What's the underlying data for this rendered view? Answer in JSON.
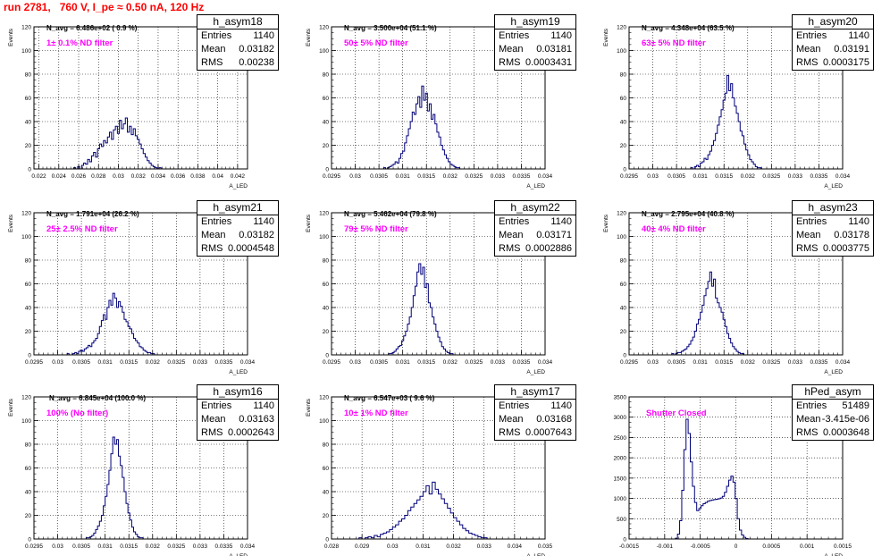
{
  "title": "run 2781,   760 V, I_pe ≈ 0.50 nA, 120 Hz",
  "chart_data": [
    {
      "type": "histogram",
      "name": "h_asym18",
      "stats": {
        "entries": "1140",
        "mean": "0.03182",
        "rms": "0.00238"
      },
      "n_avg": "N_avg = 6.486e+02 ( 0.9 %)",
      "note": "1± 0.1% ND filter",
      "ylabel": "Events",
      "xlabel": "A_LED",
      "xlim": [
        0.0215,
        0.043
      ],
      "ylim": [
        0,
        120
      ],
      "xticks": [
        0.022,
        0.024,
        0.026,
        0.028,
        0.03,
        0.032,
        0.034,
        0.036,
        0.038,
        0.04,
        0.042
      ],
      "xtick_labels": [
        "0.022",
        "0.024",
        "0.026",
        "0.028",
        "0.03",
        "0.032",
        "0.034",
        "0.036",
        "0.038",
        "0.04",
        "0.042"
      ],
      "yticks": [
        0,
        20,
        40,
        60,
        80,
        100,
        120
      ],
      "bins": {
        "start": 0.0255,
        "width": 0.0002,
        "counts": [
          1,
          0,
          2,
          0,
          3,
          5,
          4,
          8,
          6,
          11,
          14,
          10,
          17,
          21,
          19,
          24,
          22,
          27,
          31,
          25,
          33,
          36,
          30,
          41,
          34,
          38,
          43,
          31,
          36,
          29,
          34,
          28,
          25,
          21,
          17,
          13,
          10,
          7,
          5,
          3,
          2,
          1,
          0,
          1
        ]
      }
    },
    {
      "type": "histogram",
      "name": "h_asym19",
      "stats": {
        "entries": "1140",
        "mean": "0.03181",
        "rms": "0.0003431"
      },
      "n_avg": "N_avg = 3.500e+04 (51.1 %)",
      "note": "50± 5% ND filter",
      "ylabel": "Events",
      "xlabel": "A_LED",
      "xlim": [
        0.0295,
        0.034
      ],
      "ylim": [
        0,
        120
      ],
      "xticks": [
        0.0295,
        0.03,
        0.0305,
        0.031,
        0.0315,
        0.032,
        0.0325,
        0.033,
        0.0335,
        0.034
      ],
      "xtick_labels": [
        "0.0295",
        "0.03",
        "0.0305",
        "0.031",
        "0.0315",
        "0.032",
        "0.0325",
        "0.033",
        "0.0335",
        "0.034"
      ],
      "yticks": [
        0,
        20,
        40,
        60,
        80,
        100,
        120
      ],
      "bins": {
        "start": 0.0306,
        "width": 4e-05,
        "counts": [
          1,
          0,
          1,
          2,
          3,
          4,
          6,
          5,
          9,
          13,
          15,
          22,
          28,
          34,
          40,
          48,
          46,
          55,
          61,
          52,
          70,
          58,
          64,
          49,
          55,
          42,
          46,
          38,
          31,
          27,
          20,
          16,
          12,
          9,
          6,
          4,
          3,
          2,
          1,
          1
        ]
      }
    },
    {
      "type": "histogram",
      "name": "h_asym20",
      "stats": {
        "entries": "1140",
        "mean": "0.03191",
        "rms": "0.0003175"
      },
      "n_avg": "N_avg = 4.348e+04 (63.5 %)",
      "note": "63± 5% ND filter",
      "ylabel": "Events",
      "xlabel": "A_LED",
      "xlim": [
        0.0295,
        0.034
      ],
      "ylim": [
        0,
        120
      ],
      "xticks": [
        0.0295,
        0.03,
        0.0305,
        0.031,
        0.0315,
        0.032,
        0.0325,
        0.033,
        0.0335,
        0.034
      ],
      "xtick_labels": [
        "0.0295",
        "0.03",
        "0.0305",
        "0.031",
        "0.0315",
        "0.032",
        "0.0325",
        "0.033",
        "0.0335",
        "0.034"
      ],
      "yticks": [
        0,
        20,
        40,
        60,
        80,
        100,
        120
      ],
      "bins": {
        "start": 0.0308,
        "width": 4e-05,
        "counts": [
          1,
          0,
          2,
          3,
          2,
          5,
          6,
          9,
          8,
          12,
          15,
          20,
          24,
          30,
          37,
          44,
          50,
          58,
          64,
          79,
          66,
          72,
          60,
          53,
          47,
          40,
          32,
          28,
          21,
          16,
          12,
          8,
          6,
          4,
          2,
          1,
          1
        ]
      }
    },
    {
      "type": "histogram",
      "name": "h_asym21",
      "stats": {
        "entries": "1140",
        "mean": "0.03182",
        "rms": "0.0004548"
      },
      "n_avg": "N_avg = 1.791e+04 (26.2 %)",
      "note": "25± 2.5% ND filter",
      "ylabel": "Events",
      "xlabel": "A_LED",
      "xlim": [
        0.0295,
        0.034
      ],
      "ylim": [
        0,
        120
      ],
      "xticks": [
        0.0295,
        0.03,
        0.0305,
        0.031,
        0.0315,
        0.032,
        0.0325,
        0.033,
        0.0335,
        0.034
      ],
      "xtick_labels": [
        "0.0295",
        "0.03",
        "0.0305",
        "0.031",
        "0.0315",
        "0.032",
        "0.0325",
        "0.033",
        "0.0335",
        "0.034"
      ],
      "yticks": [
        0,
        20,
        40,
        60,
        80,
        100,
        120
      ],
      "bins": {
        "start": 0.0302,
        "width": 4e-05,
        "counts": [
          1,
          0,
          0,
          1,
          2,
          1,
          3,
          4,
          3,
          5,
          6,
          8,
          7,
          10,
          12,
          14,
          18,
          24,
          29,
          34,
          30,
          40,
          46,
          42,
          52,
          48,
          40,
          45,
          41,
          36,
          30,
          28,
          24,
          22,
          18,
          14,
          12,
          10,
          7,
          6,
          4,
          3,
          2,
          2,
          1,
          1
        ]
      }
    },
    {
      "type": "histogram",
      "name": "h_asym22",
      "stats": {
        "entries": "1140",
        "mean": "0.03171",
        "rms": "0.0002886"
      },
      "n_avg": "N_avg = 5.462e+04 (79.8 %)",
      "note": "79± 5% ND filter",
      "ylabel": "Events",
      "xlabel": "A_LED",
      "xlim": [
        0.0295,
        0.034
      ],
      "ylim": [
        0,
        120
      ],
      "xticks": [
        0.0295,
        0.03,
        0.0305,
        0.031,
        0.0315,
        0.032,
        0.0325,
        0.033,
        0.0335,
        0.034
      ],
      "xtick_labels": [
        "0.0295",
        "0.03",
        "0.0305",
        "0.031",
        "0.0315",
        "0.032",
        "0.0325",
        "0.033",
        "0.0335",
        "0.034"
      ],
      "yticks": [
        0,
        20,
        40,
        60,
        80,
        100,
        120
      ],
      "bins": {
        "start": 0.0307,
        "width": 4e-05,
        "counts": [
          1,
          1,
          2,
          3,
          5,
          7,
          8,
          12,
          16,
          20,
          26,
          32,
          40,
          50,
          58,
          70,
          77,
          68,
          74,
          57,
          60,
          44,
          40,
          32,
          26,
          20,
          15,
          11,
          7,
          5,
          3,
          2,
          1,
          1
        ]
      }
    },
    {
      "type": "histogram",
      "name": "h_asym23",
      "stats": {
        "entries": "1140",
        "mean": "0.03178",
        "rms": "0.0003775"
      },
      "n_avg": "N_avg = 2.795e+04 (40.8 %)",
      "note": "40± 4% ND filter",
      "ylabel": "Events",
      "xlabel": "A_LED",
      "xlim": [
        0.0295,
        0.034
      ],
      "ylim": [
        0,
        120
      ],
      "xticks": [
        0.0295,
        0.03,
        0.0305,
        0.031,
        0.0315,
        0.032,
        0.0325,
        0.033,
        0.0335,
        0.034
      ],
      "xtick_labels": [
        "0.0295",
        "0.03",
        "0.0305",
        "0.031",
        "0.0315",
        "0.032",
        "0.0325",
        "0.033",
        "0.0335",
        "0.034"
      ],
      "yticks": [
        0,
        20,
        40,
        60,
        80,
        100,
        120
      ],
      "bins": {
        "start": 0.0304,
        "width": 4e-05,
        "counts": [
          1,
          0,
          1,
          2,
          2,
          3,
          4,
          5,
          7,
          9,
          12,
          15,
          20,
          26,
          30,
          36,
          42,
          50,
          56,
          62,
          70,
          58,
          64,
          48,
          44,
          40,
          36,
          30,
          24,
          18,
          14,
          10,
          7,
          5,
          3,
          2,
          1,
          1
        ]
      }
    },
    {
      "type": "histogram",
      "name": "h_asym16",
      "stats": {
        "entries": "1140",
        "mean": "0.03163",
        "rms": "0.0002643"
      },
      "n_avg": "N_avg = 6.845e+04 (100.0 %)",
      "note": "100% (No filter)",
      "ylabel": "Events",
      "xlabel": "A_LED",
      "xlim": [
        0.0295,
        0.034
      ],
      "ylim": [
        0,
        120
      ],
      "xticks": [
        0.0295,
        0.03,
        0.0305,
        0.031,
        0.0315,
        0.032,
        0.0325,
        0.033,
        0.0335,
        0.034
      ],
      "xtick_labels": [
        "0.0295",
        "0.03",
        "0.0305",
        "0.031",
        "0.0315",
        "0.032",
        "0.0325",
        "0.033",
        "0.0335",
        "0.034"
      ],
      "yticks": [
        0,
        20,
        40,
        60,
        80,
        100,
        120
      ],
      "bins": {
        "start": 0.0306,
        "width": 4e-05,
        "counts": [
          1,
          1,
          2,
          3,
          5,
          8,
          11,
          15,
          20,
          28,
          36,
          46,
          58,
          72,
          86,
          80,
          84,
          70,
          62,
          52,
          40,
          30,
          22,
          16,
          10,
          6,
          4,
          2,
          1,
          1
        ]
      }
    },
    {
      "type": "histogram",
      "name": "h_asym17",
      "stats": {
        "entries": "1140",
        "mean": "0.03168",
        "rms": "0.0007643"
      },
      "n_avg": "N_avg = 6.547e+03 ( 9.6 %)",
      "note": "10± 1% ND filter",
      "ylabel": "Events",
      "xlabel": "A_LED",
      "xlim": [
        0.028,
        0.035
      ],
      "ylim": [
        0,
        120
      ],
      "xticks": [
        0.028,
        0.029,
        0.03,
        0.031,
        0.032,
        0.033,
        0.034,
        0.035
      ],
      "xtick_labels": [
        "0.028",
        "0.029",
        "0.03",
        "0.031",
        "0.032",
        "0.033",
        "0.034",
        "0.035"
      ],
      "yticks": [
        0,
        20,
        40,
        60,
        80,
        100,
        120
      ],
      "bins": {
        "start": 0.0289,
        "width": 0.0001,
        "counts": [
          1,
          0,
          1,
          2,
          1,
          3,
          2,
          4,
          5,
          6,
          8,
          10,
          12,
          15,
          17,
          20,
          24,
          27,
          30,
          33,
          36,
          40,
          45,
          38,
          48,
          42,
          38,
          34,
          30,
          26,
          22,
          18,
          15,
          12,
          9,
          7,
          5,
          4,
          3,
          2,
          1,
          1
        ]
      }
    },
    {
      "type": "histogram",
      "name": "hPed_asym",
      "stats": {
        "entries": "51489",
        "mean": "-3.415e-06",
        "rms": "0.0003648"
      },
      "note": "Shutter Closed",
      "xlabel": "A_LED",
      "xlim": [
        -0.0015,
        0.0015
      ],
      "ylim": [
        0,
        3500
      ],
      "xticks": [
        -0.0015,
        -0.001,
        -0.0005,
        0,
        0.0005,
        0.001,
        0.0015
      ],
      "xtick_labels": [
        "-0.0015",
        "-0.001",
        "-0.0005",
        "0",
        "0.0005",
        "0.001",
        "0.0015"
      ],
      "yticks": [
        0,
        500,
        1000,
        1500,
        2000,
        2500,
        3000,
        3500
      ],
      "bins": {
        "start": -0.00085,
        "width": 3e-05,
        "counts": [
          20,
          120,
          450,
          1200,
          2200,
          2950,
          2600,
          1900,
          1300,
          900,
          700,
          750,
          820,
          870,
          900,
          930,
          950,
          960,
          970,
          980,
          990,
          1010,
          1050,
          1150,
          1300,
          1450,
          1550,
          1400,
          1000,
          500,
          220,
          100,
          40,
          10
        ]
      }
    }
  ]
}
